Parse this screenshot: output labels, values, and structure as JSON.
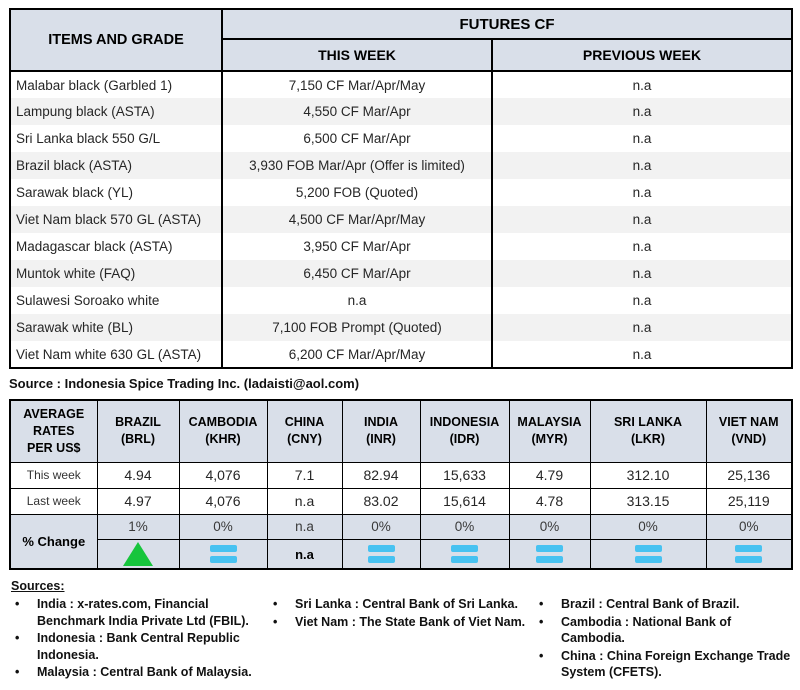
{
  "futures_table": {
    "col1_header": "ITEMS AND GRADE",
    "group_header": "FUTURES CF",
    "this_week_header": "THIS WEEK",
    "previous_week_header": "PREVIOUS WEEK",
    "rows": [
      {
        "item": "Malabar black (Garbled 1)",
        "this_week": "7,150 CF Mar/Apr/May",
        "previous_week": "n.a"
      },
      {
        "item": "Lampung black (ASTA)",
        "this_week": "4,550 CF Mar/Apr",
        "previous_week": "n.a"
      },
      {
        "item": "Sri Lanka black 550 G/L",
        "this_week": "6,500 CF Mar/Apr",
        "previous_week": "n.a"
      },
      {
        "item": "Brazil black (ASTA)",
        "this_week": "3,930 FOB Mar/Apr (Offer is limited)",
        "previous_week": "n.a"
      },
      {
        "item": "Sarawak black (YL)",
        "this_week": "5,200 FOB (Quoted)",
        "previous_week": "n.a"
      },
      {
        "item": "Viet Nam black 570 GL (ASTA)",
        "this_week": "4,500 CF Mar/Apr/May",
        "previous_week": "n.a"
      },
      {
        "item": "Madagascar black (ASTA)",
        "this_week": "3,950 CF Mar/Apr",
        "previous_week": "n.a"
      },
      {
        "item": "Muntok white (FAQ)",
        "this_week": "6,450 CF Mar/Apr",
        "previous_week": "n.a"
      },
      {
        "item": "Sulawesi Soroako white",
        "this_week": "n.a",
        "previous_week": "n.a"
      },
      {
        "item": "Sarawak  white (BL)",
        "this_week": "7,100 FOB Prompt (Quoted)",
        "previous_week": "n.a"
      },
      {
        "item": "Viet Nam white 630 GL (ASTA)",
        "this_week": "6,200 CF Mar/Apr/May",
        "previous_week": "n.a"
      }
    ]
  },
  "source_line": "Source : Indonesia Spice Trading Inc. (ladaisti@aol.com)",
  "rates_table": {
    "row_header": "AVERAGE RATES PER US$",
    "columns": [
      {
        "country": "BRAZIL",
        "code": "(BRL)"
      },
      {
        "country": "CAMBODIA",
        "code": "(KHR)"
      },
      {
        "country": "CHINA",
        "code": "(CNY)"
      },
      {
        "country": "INDIA",
        "code": "(INR)"
      },
      {
        "country": "INDONESIA",
        "code": "(IDR)"
      },
      {
        "country": "MALAYSIA",
        "code": "(MYR)"
      },
      {
        "country": "SRI LANKA",
        "code": "(LKR)"
      },
      {
        "country": "VIET NAM",
        "code": "(VND)"
      }
    ],
    "this_week_label": "This week",
    "last_week_label": "Last week",
    "pct_change_label": "% Change",
    "this_week": [
      "4.94",
      "4,076",
      "7.1",
      "82.94",
      "15,633",
      "4.79",
      "312.10",
      "25,136"
    ],
    "last_week": [
      "4.97",
      "4,076",
      "n.a",
      "83.02",
      "15,614",
      "4.78",
      "313.15",
      "25,119"
    ],
    "pct_change": [
      "1%",
      "0%",
      "n.a",
      "0%",
      "0%",
      "0%",
      "0%",
      "0%"
    ],
    "trend": [
      "up",
      "equal",
      "na",
      "equal",
      "equal",
      "equal",
      "equal",
      "equal"
    ],
    "trend_na_text": "n.a"
  },
  "sources": {
    "heading": "Sources:",
    "col1": [
      "India : x-rates.com, Financial Benchmark India Private Ltd (FBIL).",
      "Indonesia : Bank Central Republic Indonesia.",
      "Malaysia : Central Bank of Malaysia."
    ],
    "col2": [
      "Sri Lanka : Central Bank of Sri Lanka.",
      "Viet Nam : The State Bank of Viet Nam."
    ],
    "col3": [
      "Brazil :  Central Bank of Brazil.",
      "Cambodia : National Bank of Cambodia.",
      "China : China Foreign Exchange Trade System (CFETS)."
    ]
  },
  "colors": {
    "header_fill": "#d9dfe9",
    "alt_row": "#f2f2f2",
    "up_green": "#17c53c",
    "equal_blue": "#47c2f1"
  }
}
